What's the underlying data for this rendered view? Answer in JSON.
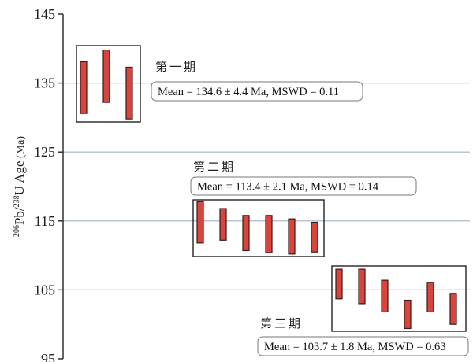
{
  "chart_data": {
    "type": "bar",
    "ylabel_parts": [
      "206",
      "Pb/",
      "238",
      "U  Age",
      " (Ma)"
    ],
    "ylim": [
      95,
      145
    ],
    "yticks": [
      95,
      105,
      115,
      125,
      135,
      145
    ],
    "grid": true,
    "groups": [
      {
        "label": "第一期",
        "mean_text": "Mean = 134.6 ± 4.4 Ma, MSWD = 0.11",
        "bars": [
          [
            130.6,
            138.1
          ],
          [
            132.2,
            139.8
          ],
          [
            129.8,
            137.3
          ]
        ]
      },
      {
        "label": "第二期",
        "mean_text": "Mean = 113.4 ± 2.1 Ma, MSWD = 0.14",
        "bars": [
          [
            111.8,
            117.8
          ],
          [
            112.2,
            116.8
          ],
          [
            110.7,
            115.8
          ],
          [
            110.4,
            115.8
          ],
          [
            110.2,
            115.3
          ],
          [
            110.5,
            114.8
          ]
        ]
      },
      {
        "label": "第三期",
        "mean_text": "Mean = 103.7 ± 1.8 Ma, MSWD = 0.63",
        "bars": [
          [
            103.7,
            108.0
          ],
          [
            103.0,
            108.0
          ],
          [
            101.8,
            106.4
          ],
          [
            99.4,
            103.5
          ],
          [
            101.8,
            106.1
          ],
          [
            100.0,
            104.5
          ]
        ]
      }
    ]
  }
}
